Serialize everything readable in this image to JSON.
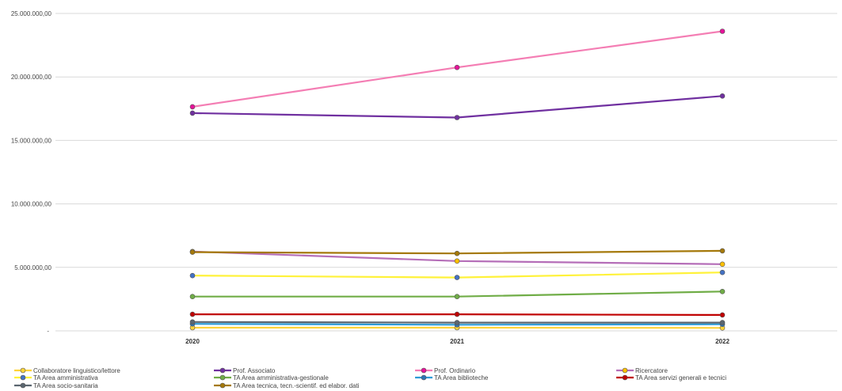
{
  "chart_data": {
    "type": "line",
    "title": "",
    "xlabel": "",
    "ylabel": "",
    "categories": [
      "2020",
      "2021",
      "2022"
    ],
    "ylim": [
      0,
      25000000
    ],
    "yticks": [
      0,
      5000000,
      10000000,
      15000000,
      20000000,
      25000000
    ],
    "ytick_labels": [
      "-",
      "5.000.000,00",
      "10.000.000,00",
      "15.000.000,00",
      "20.000.000,00",
      "25.000.000,00"
    ],
    "grid": true,
    "legend_position": "bottom",
    "series": [
      {
        "name": "Collaboratore linguistico/lettore",
        "color": "#FFD33A",
        "values": [
          250000,
          250000,
          230000
        ]
      },
      {
        "name": "Prof. Associato",
        "color": "#7030A0",
        "values": [
          17150000,
          16800000,
          18500000
        ]
      },
      {
        "name": "Prof. Ordinario",
        "color": "#F47EB4",
        "marker_color": "#E6139A",
        "values": [
          17650000,
          20750000,
          23600000
        ]
      },
      {
        "name": "Ricercatore",
        "color": "#B56EB8",
        "marker_color": "#FFC000",
        "values": [
          6250000,
          5500000,
          5250000
        ]
      },
      {
        "name": "TA Area amministrativa",
        "color": "#FFF23A",
        "marker_color": "#4472C4",
        "values": [
          4350000,
          4200000,
          4600000
        ]
      },
      {
        "name": "TA Area amministrativa-gestionale",
        "color": "#70AD47",
        "values": [
          2700000,
          2700000,
          3100000
        ]
      },
      {
        "name": "TA Area biblioteche",
        "color": "#2E9BD6",
        "marker_color": "#2E75B6",
        "values": [
          550000,
          480000,
          520000
        ]
      },
      {
        "name": "TA Area servizi generali e tecnici",
        "color": "#C00000",
        "values": [
          1300000,
          1300000,
          1250000
        ]
      },
      {
        "name": "TA Area socio-sanitaria",
        "color": "#5B6670",
        "values": [
          700000,
          650000,
          650000
        ]
      },
      {
        "name": "TA Area tecnica, tecn.-scientif. ed elabor. dati",
        "color": "#A5790B",
        "values": [
          6200000,
          6100000,
          6300000
        ]
      }
    ]
  }
}
